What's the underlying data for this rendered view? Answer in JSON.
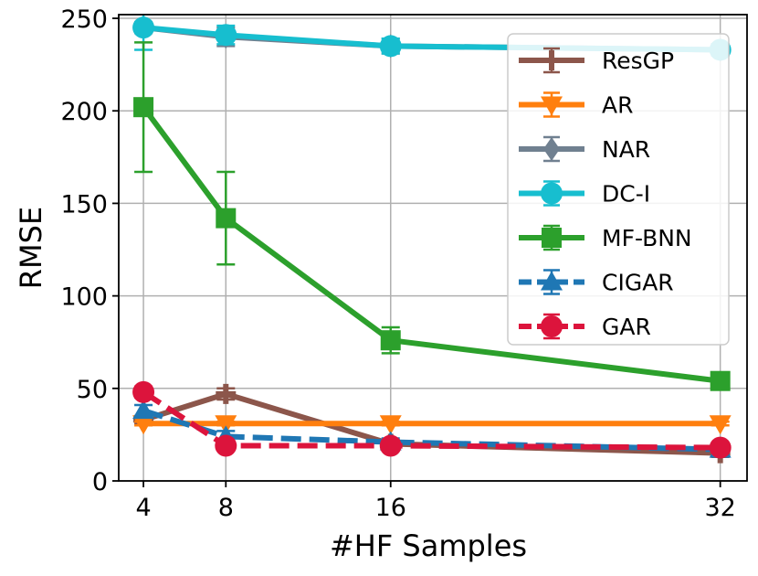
{
  "chart_data": {
    "type": "line",
    "title": "",
    "xlabel": "#HF Samples",
    "ylabel": "RMSE",
    "x": [
      4,
      8,
      16,
      32
    ],
    "x_tick_labels": [
      "4",
      "8",
      "16",
      "32"
    ],
    "xlim": [
      2.8,
      33.3
    ],
    "ylim": [
      0,
      252
    ],
    "y_ticks": [
      0,
      50,
      100,
      150,
      200,
      250
    ],
    "y_tick_labels": [
      "0",
      "50",
      "100",
      "150",
      "200",
      "250"
    ],
    "grid": true,
    "legend_position": "top-right",
    "series": [
      {
        "name": "ResGP",
        "color": "#8c564b",
        "marker": "plus",
        "dashed": false,
        "values": [
          33,
          47,
          20,
          15
        ],
        "errors": [
          2,
          3,
          2,
          2
        ]
      },
      {
        "name": "AR",
        "color": "#ff7f0e",
        "marker": "triangle-down",
        "dashed": false,
        "values": [
          31,
          31,
          31,
          31
        ],
        "errors": [
          1,
          1,
          1,
          1
        ]
      },
      {
        "name": "NAR",
        "color": "#708090",
        "marker": "diamond",
        "dashed": false,
        "values": [
          245,
          240,
          235,
          233
        ],
        "errors": [
          3,
          5,
          4,
          3
        ]
      },
      {
        "name": "DC-I",
        "color": "#17becf",
        "marker": "circle",
        "dashed": false,
        "values": [
          245,
          241,
          235,
          233
        ],
        "errors": [
          12,
          5,
          4,
          3
        ]
      },
      {
        "name": "MF-BNN",
        "color": "#2ca02c",
        "marker": "square",
        "dashed": false,
        "values": [
          202,
          142,
          76,
          54
        ],
        "errors": [
          35,
          25,
          7,
          4
        ]
      },
      {
        "name": "CIGAR",
        "color": "#1f77b4",
        "marker": "triangle-up",
        "dashed": true,
        "values": [
          38,
          24,
          21,
          17
        ],
        "errors": [
          3,
          3,
          2,
          2
        ]
      },
      {
        "name": "GAR",
        "color": "#dc143c",
        "marker": "circle",
        "dashed": true,
        "values": [
          48,
          19,
          19,
          18
        ],
        "errors": [
          3,
          2,
          2,
          2
        ]
      }
    ]
  }
}
